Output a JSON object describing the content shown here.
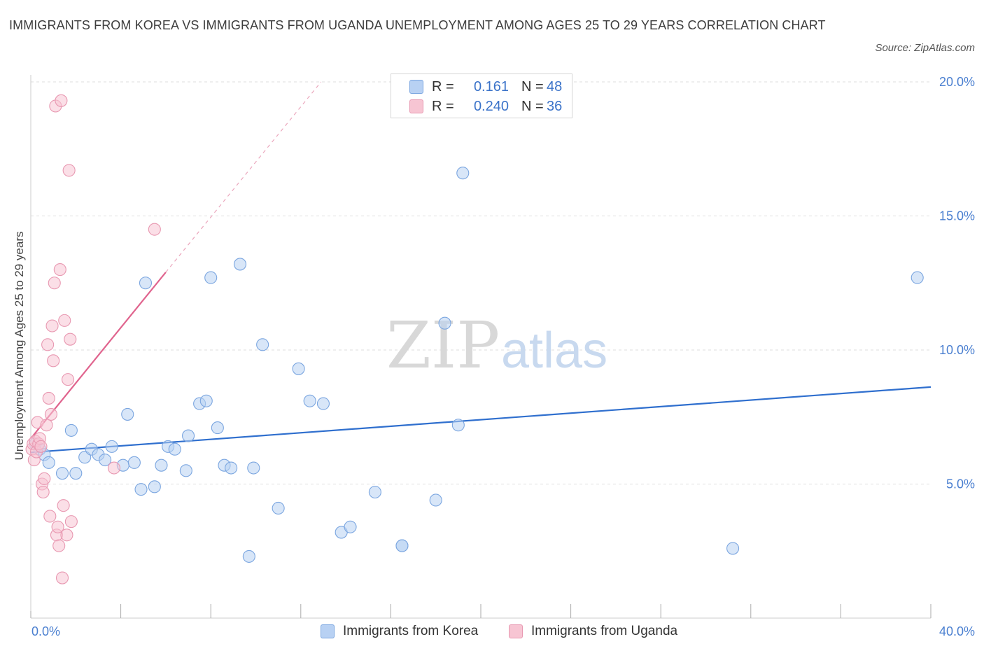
{
  "title": "IMMIGRANTS FROM KOREA VS IMMIGRANTS FROM UGANDA UNEMPLOYMENT AMONG AGES 25 TO 29 YEARS CORRELATION CHART",
  "source": "Source: ZipAtlas.com",
  "watermark": {
    "zip": "ZIP",
    "atlas": "atlas"
  },
  "legend": {
    "korea": {
      "r_label": "R =",
      "r_value": "0.161",
      "n_label": "N =",
      "n_value": "48"
    },
    "uganda": {
      "r_label": "R =",
      "r_value": "0.240",
      "n_label": "N =",
      "n_value": "36"
    }
  },
  "colors": {
    "korea_fill": "#b8d1f3",
    "korea_stroke": "#7ba6e0",
    "korea_line": "#2f6fce",
    "uganda_fill": "#f7c5d3",
    "uganda_stroke": "#e898b1",
    "uganda_line": "#e0648e",
    "grid": "#dddddd",
    "axis_text": "#4a7fd0"
  },
  "chart_data": {
    "type": "scatter",
    "title": "IMMIGRANTS FROM KOREA VS IMMIGRANTS FROM UGANDA UNEMPLOYMENT AMONG AGES 25 TO 29 YEARS CORRELATION CHART",
    "xlabel": "",
    "ylabel": "Unemployment Among Ages 25 to 29 years",
    "xlim": [
      0,
      40
    ],
    "ylim": [
      0,
      20
    ],
    "x_tick_labels": [
      "0.0%",
      "40.0%"
    ],
    "y_ticks": [
      5,
      10,
      15,
      20
    ],
    "y_tick_labels": [
      "5.0%",
      "10.0%",
      "15.0%",
      "20.0%"
    ],
    "grid": true,
    "legend_position": "top-center",
    "series": [
      {
        "name": "Immigrants from Korea",
        "color": "#b8d1f3",
        "r": 0.161,
        "n": 48,
        "trend": {
          "x": [
            0,
            40
          ],
          "y": [
            6.18,
            8.62
          ]
        },
        "points": [
          [
            0.2,
            6.5
          ],
          [
            0.4,
            6.3
          ],
          [
            0.6,
            6.1
          ],
          [
            0.8,
            5.8
          ],
          [
            1.4,
            5.4
          ],
          [
            1.8,
            7.0
          ],
          [
            2.0,
            5.4
          ],
          [
            2.4,
            6.0
          ],
          [
            2.7,
            6.3
          ],
          [
            3.0,
            6.1
          ],
          [
            3.3,
            5.9
          ],
          [
            3.6,
            6.4
          ],
          [
            4.1,
            5.7
          ],
          [
            4.3,
            7.6
          ],
          [
            4.6,
            5.8
          ],
          [
            4.9,
            4.8
          ],
          [
            5.1,
            12.5
          ],
          [
            5.5,
            4.9
          ],
          [
            5.8,
            5.7
          ],
          [
            6.1,
            6.4
          ],
          [
            6.4,
            6.3
          ],
          [
            6.9,
            5.5
          ],
          [
            7.0,
            6.8
          ],
          [
            7.5,
            8.0
          ],
          [
            7.8,
            8.1
          ],
          [
            8.0,
            12.7
          ],
          [
            8.3,
            7.1
          ],
          [
            8.6,
            5.7
          ],
          [
            8.9,
            5.6
          ],
          [
            9.3,
            13.2
          ],
          [
            9.7,
            2.3
          ],
          [
            9.9,
            5.6
          ],
          [
            10.3,
            10.2
          ],
          [
            11.0,
            4.1
          ],
          [
            11.9,
            9.3
          ],
          [
            12.4,
            8.1
          ],
          [
            13.0,
            8.0
          ],
          [
            13.8,
            3.2
          ],
          [
            14.2,
            3.4
          ],
          [
            15.3,
            4.7
          ],
          [
            16.5,
            2.7
          ],
          [
            16.5,
            2.7
          ],
          [
            18.0,
            4.4
          ],
          [
            18.4,
            11.0
          ],
          [
            19.0,
            7.2
          ],
          [
            19.2,
            16.6
          ],
          [
            31.2,
            2.6
          ],
          [
            39.4,
            12.7
          ]
        ]
      },
      {
        "name": "Immigrants from Uganda",
        "color": "#f7c5d3",
        "r": 0.24,
        "n": 36,
        "trend": {
          "x": [
            0,
            6.0
          ],
          "y": [
            6.7,
            12.9
          ]
        },
        "trend_extension": {
          "x": [
            6.0,
            12.9
          ],
          "y": [
            12.9,
            20.0
          ]
        },
        "points": [
          [
            0.05,
            6.3
          ],
          [
            0.1,
            6.5
          ],
          [
            0.15,
            5.9
          ],
          [
            0.2,
            6.6
          ],
          [
            0.25,
            6.2
          ],
          [
            0.3,
            7.3
          ],
          [
            0.35,
            6.5
          ],
          [
            0.4,
            6.7
          ],
          [
            0.45,
            6.4
          ],
          [
            0.5,
            5.0
          ],
          [
            0.55,
            4.7
          ],
          [
            0.6,
            5.2
          ],
          [
            0.7,
            7.2
          ],
          [
            0.75,
            10.2
          ],
          [
            0.8,
            8.2
          ],
          [
            0.85,
            3.8
          ],
          [
            0.9,
            7.6
          ],
          [
            0.95,
            10.9
          ],
          [
            1.0,
            9.6
          ],
          [
            1.05,
            12.5
          ],
          [
            1.1,
            19.1
          ],
          [
            1.15,
            3.1
          ],
          [
            1.2,
            3.4
          ],
          [
            1.25,
            2.7
          ],
          [
            1.3,
            13.0
          ],
          [
            1.35,
            19.3
          ],
          [
            1.4,
            1.5
          ],
          [
            1.45,
            4.2
          ],
          [
            1.5,
            11.1
          ],
          [
            1.6,
            3.1
          ],
          [
            1.65,
            8.9
          ],
          [
            1.7,
            16.7
          ],
          [
            1.75,
            10.4
          ],
          [
            1.8,
            3.6
          ],
          [
            3.7,
            5.6
          ],
          [
            5.5,
            14.5
          ]
        ]
      }
    ]
  },
  "bottom_legend": {
    "korea": "Immigrants from Korea",
    "uganda": "Immigrants from Uganda"
  }
}
